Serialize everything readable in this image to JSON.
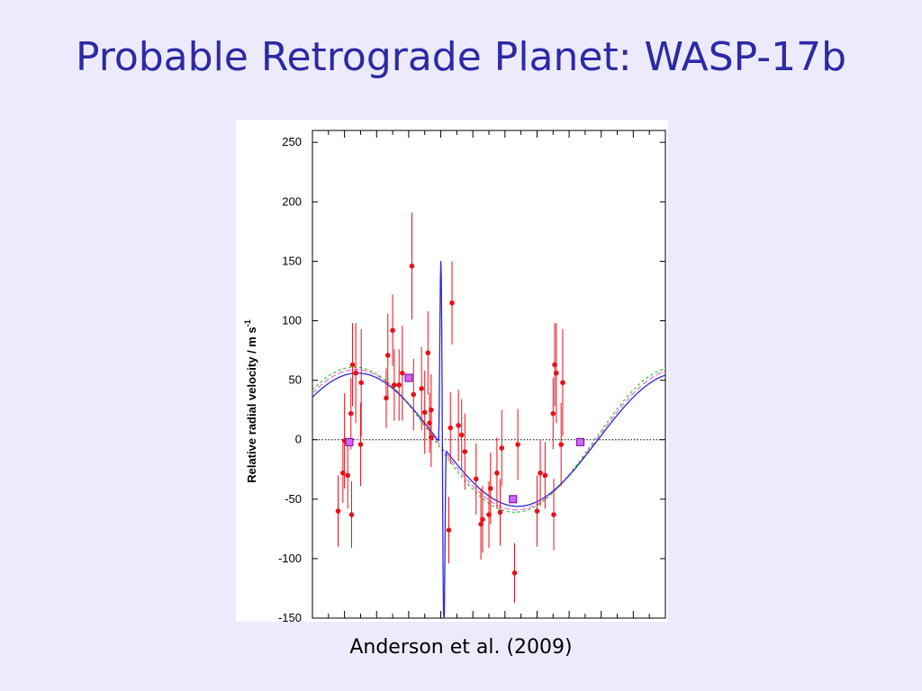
{
  "slide": {
    "title": "Probable Retrograde Planet: WASP-17b",
    "caption": "Anderson et al. (2009)"
  },
  "chart_data": {
    "type": "scatter",
    "ylabel": "Relative radial velocity / m s",
    "ylabel_superscript": "-1",
    "xlabel": "",
    "ylim": [
      -150,
      260
    ],
    "xlim": [
      -0.05,
      1.05
    ],
    "yticks": [
      -150,
      -100,
      -50,
      0,
      50,
      100,
      150,
      200,
      250
    ],
    "grid": false,
    "zero_line": true,
    "colors": {
      "points": "#e8101b",
      "errorbars": "#e8101b",
      "model_blue": "#2a2ad6",
      "model_green": "#22cc22",
      "model_magenta": "#ff66dd",
      "squares_fill": "#cc66ff",
      "squares_edge": "#7a0099"
    },
    "series": [
      {
        "type": "scatter_errorbars",
        "points": [
          {
            "x": 0.03,
            "y": -60,
            "err": 30
          },
          {
            "x": 0.045,
            "y": -28,
            "err": 25
          },
          {
            "x": 0.05,
            "y": -1,
            "err": 40
          },
          {
            "x": 0.06,
            "y": -30,
            "err": 28
          },
          {
            "x": 0.07,
            "y": 22,
            "err": 30
          },
          {
            "x": 0.072,
            "y": -63,
            "err": 28
          },
          {
            "x": 0.075,
            "y": 63,
            "err": 35
          },
          {
            "x": 0.085,
            "y": 56,
            "err": 42
          },
          {
            "x": 0.1,
            "y": -4,
            "err": 35
          },
          {
            "x": 0.102,
            "y": 48,
            "err": 45
          },
          {
            "x": 0.18,
            "y": 35,
            "err": 25
          },
          {
            "x": 0.185,
            "y": 71,
            "err": 35
          },
          {
            "x": 0.2,
            "y": 92,
            "err": 30
          },
          {
            "x": 0.205,
            "y": 46,
            "err": 30
          },
          {
            "x": 0.22,
            "y": 46,
            "err": 30
          },
          {
            "x": 0.23,
            "y": 56,
            "err": 40
          },
          {
            "x": 0.26,
            "y": 146,
            "err": 45
          },
          {
            "x": 0.265,
            "y": 38,
            "err": 30
          },
          {
            "x": 0.29,
            "y": 43,
            "err": 35
          },
          {
            "x": 0.3,
            "y": 23,
            "err": 35
          },
          {
            "x": 0.31,
            "y": 73,
            "err": 35
          },
          {
            "x": 0.315,
            "y": 14,
            "err": 25
          },
          {
            "x": 0.32,
            "y": 2,
            "err": 25
          },
          {
            "x": 0.32,
            "y": 25,
            "err": 30
          },
          {
            "x": 0.375,
            "y": -76,
            "err": 28
          },
          {
            "x": 0.38,
            "y": 10,
            "err": 30
          },
          {
            "x": 0.385,
            "y": 115,
            "err": 35
          },
          {
            "x": 0.405,
            "y": 12,
            "err": 30
          },
          {
            "x": 0.415,
            "y": 4,
            "err": 30
          },
          {
            "x": 0.425,
            "y": -10,
            "err": 32
          },
          {
            "x": 0.46,
            "y": -33,
            "err": 30
          },
          {
            "x": 0.475,
            "y": -71,
            "err": 30
          },
          {
            "x": 0.48,
            "y": -67,
            "err": 28
          },
          {
            "x": 0.5,
            "y": -63,
            "err": 28
          },
          {
            "x": 0.505,
            "y": -41,
            "err": 30
          },
          {
            "x": 0.525,
            "y": -28,
            "err": 30
          },
          {
            "x": 0.535,
            "y": -61,
            "err": 28
          },
          {
            "x": 0.54,
            "y": -7,
            "err": 32
          },
          {
            "x": 0.58,
            "y": -112,
            "err": 25
          },
          {
            "x": 0.59,
            "y": -4,
            "err": 30
          },
          {
            "x": 0.65,
            "y": -60,
            "err": 30
          },
          {
            "x": 0.66,
            "y": -28,
            "err": 28
          },
          {
            "x": 0.675,
            "y": -30,
            "err": 28
          },
          {
            "x": 0.7,
            "y": 22,
            "err": 30
          },
          {
            "x": 0.702,
            "y": -63,
            "err": 30
          },
          {
            "x": 0.705,
            "y": 63,
            "err": 35
          },
          {
            "x": 0.71,
            "y": 56,
            "err": 42
          },
          {
            "x": 0.725,
            "y": -4,
            "err": 35
          },
          {
            "x": 0.73,
            "y": 48,
            "err": 45
          }
        ]
      },
      {
        "type": "squares",
        "points": [
          {
            "x": 0.065,
            "y": -2
          },
          {
            "x": 0.25,
            "y": 52
          },
          {
            "x": 0.575,
            "y": -50
          },
          {
            "x": 0.785,
            "y": -2
          }
        ]
      }
    ]
  }
}
